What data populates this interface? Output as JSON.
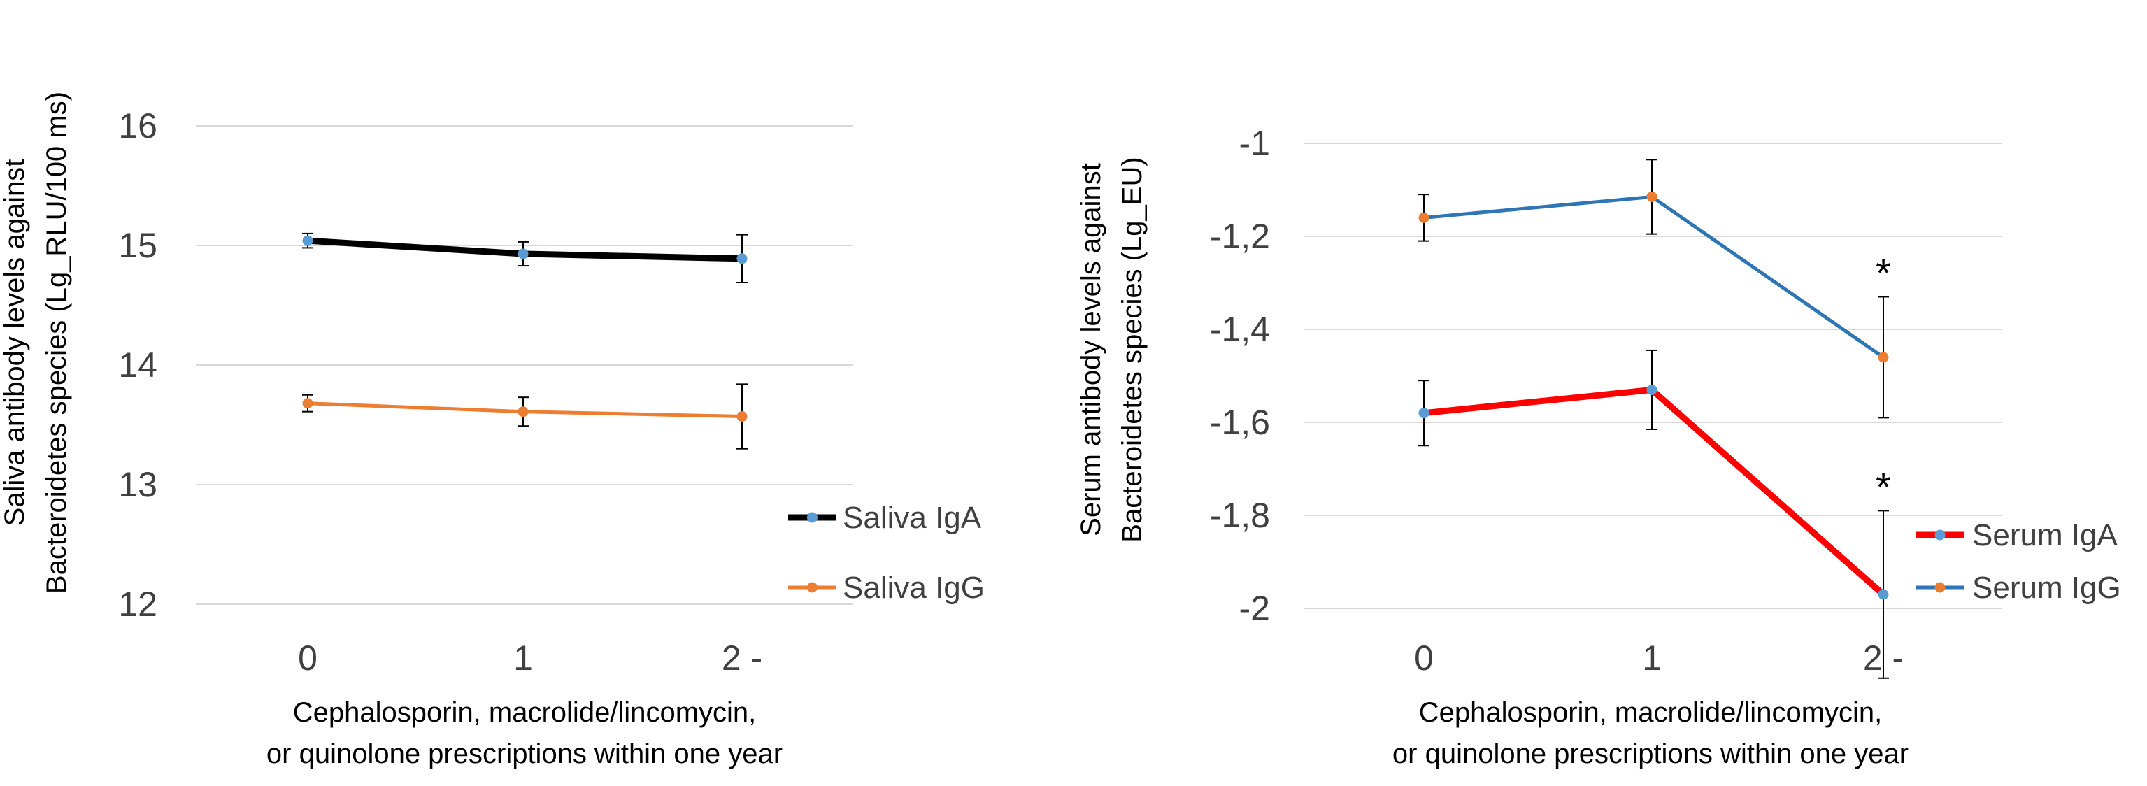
{
  "chart_data": [
    {
      "type": "line",
      "title": "",
      "xlabel": [
        "Cephalosporin, macrolide/lincomycin,",
        "or quinolone prescriptions within one year"
      ],
      "ylabel": [
        "Saliva antibody levels against",
        "Bacteroidetes species (Lg_RLU/100 ms)"
      ],
      "categories": [
        "0",
        "1",
        "2 -"
      ],
      "ylim": [
        12,
        16
      ],
      "yticks": [
        "12",
        "13",
        "14",
        "15",
        "16"
      ],
      "ytick_values": [
        12,
        13,
        14,
        15,
        16
      ],
      "grid": true,
      "legend_position": "right",
      "series": [
        {
          "name": "Saliva IgA",
          "values": [
            15.04,
            14.93,
            14.89
          ],
          "errors": [
            0.06,
            0.1,
            0.2
          ],
          "line_color": "#000000",
          "marker_color": "#5B9BD5"
        },
        {
          "name": "Saliva IgG",
          "values": [
            13.68,
            13.61,
            13.57
          ],
          "errors": [
            0.07,
            0.12,
            0.27
          ],
          "line_color": "#ED7D31",
          "marker_color": "#ED7D31"
        }
      ],
      "annotations": []
    },
    {
      "type": "line",
      "title": "",
      "xlabel": [
        "Cephalosporin, macrolide/lincomycin,",
        "or quinolone prescriptions within one year"
      ],
      "ylabel": [
        "Serum antibody levels against",
        "Bacteroidetes species (Lg_EU)"
      ],
      "categories": [
        "0",
        "1",
        "2 -"
      ],
      "ylim": [
        -2,
        -1
      ],
      "yticks": [
        "-2",
        "-1,8",
        "-1,6",
        "-1,4",
        "-1,2",
        "-1"
      ],
      "ytick_values": [
        -2,
        -1.8,
        -1.6,
        -1.4,
        -1.2,
        -1
      ],
      "grid": true,
      "legend_position": "right",
      "series": [
        {
          "name": "Serum IgA",
          "values": [
            -1.58,
            -1.53,
            -1.97
          ],
          "errors": [
            0.07,
            0.085,
            0.18
          ],
          "line_color": "#FF0000",
          "marker_color": "#5B9BD5"
        },
        {
          "name": "Serum IgG",
          "values": [
            -1.16,
            -1.115,
            -1.46
          ],
          "errors": [
            0.05,
            0.08,
            0.13
          ],
          "line_color": "#2E75B6",
          "marker_color": "#ED7D31"
        }
      ],
      "annotations": [
        {
          "text": "*",
          "category": "2 -",
          "series": "Serum IgG"
        },
        {
          "text": "*",
          "category": "2 -",
          "series": "Serum IgA"
        }
      ]
    }
  ]
}
